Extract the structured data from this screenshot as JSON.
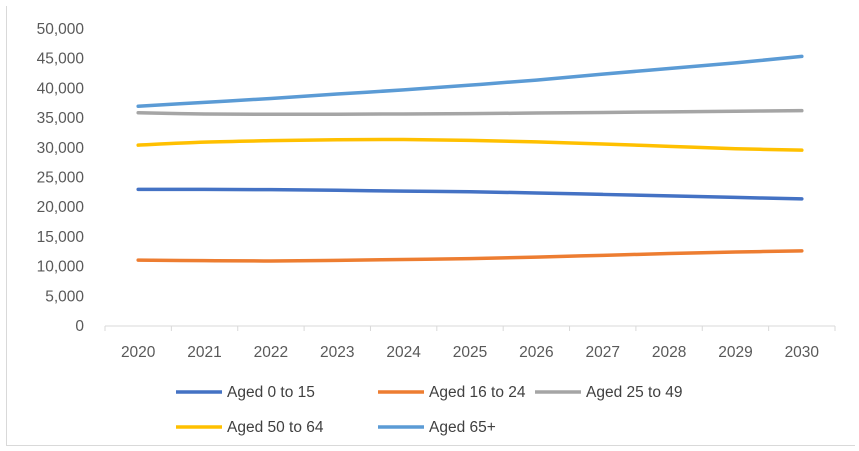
{
  "chart_data": {
    "type": "line",
    "title": "",
    "xlabel": "",
    "ylabel": "",
    "x": [
      "2020",
      "2021",
      "2022",
      "2023",
      "2024",
      "2025",
      "2026",
      "2027",
      "2028",
      "2029",
      "2030"
    ],
    "ylim": [
      0,
      50000
    ],
    "yticks": [
      "0",
      "5,000",
      "10,000",
      "15,000",
      "20,000",
      "25,000",
      "30,000",
      "35,000",
      "40,000",
      "45,000",
      "50,000"
    ],
    "grid": false,
    "legend_position": "bottom",
    "series": [
      {
        "name": "Aged 0 to 15",
        "color": "#4472c4",
        "values": [
          23000,
          23000,
          22950,
          22850,
          22700,
          22600,
          22400,
          22150,
          21900,
          21650,
          21400
        ]
      },
      {
        "name": "Aged 16 to 24",
        "color": "#ed7d31",
        "values": [
          11100,
          11000,
          10950,
          11050,
          11200,
          11350,
          11600,
          11900,
          12200,
          12450,
          12650
        ]
      },
      {
        "name": "Aged 25 to 49",
        "color": "#a5a5a5",
        "values": [
          35900,
          35700,
          35650,
          35650,
          35700,
          35750,
          35850,
          35950,
          36050,
          36150,
          36250
        ]
      },
      {
        "name": "Aged 50 to 64",
        "color": "#ffc000",
        "values": [
          30450,
          30950,
          31200,
          31350,
          31400,
          31250,
          31000,
          30650,
          30250,
          29850,
          29600
        ]
      },
      {
        "name": "Aged 65+",
        "color": "#5b9bd5",
        "values": [
          37000,
          37650,
          38300,
          39050,
          39750,
          40550,
          41400,
          42400,
          43350,
          44300,
          45400
        ]
      }
    ]
  }
}
